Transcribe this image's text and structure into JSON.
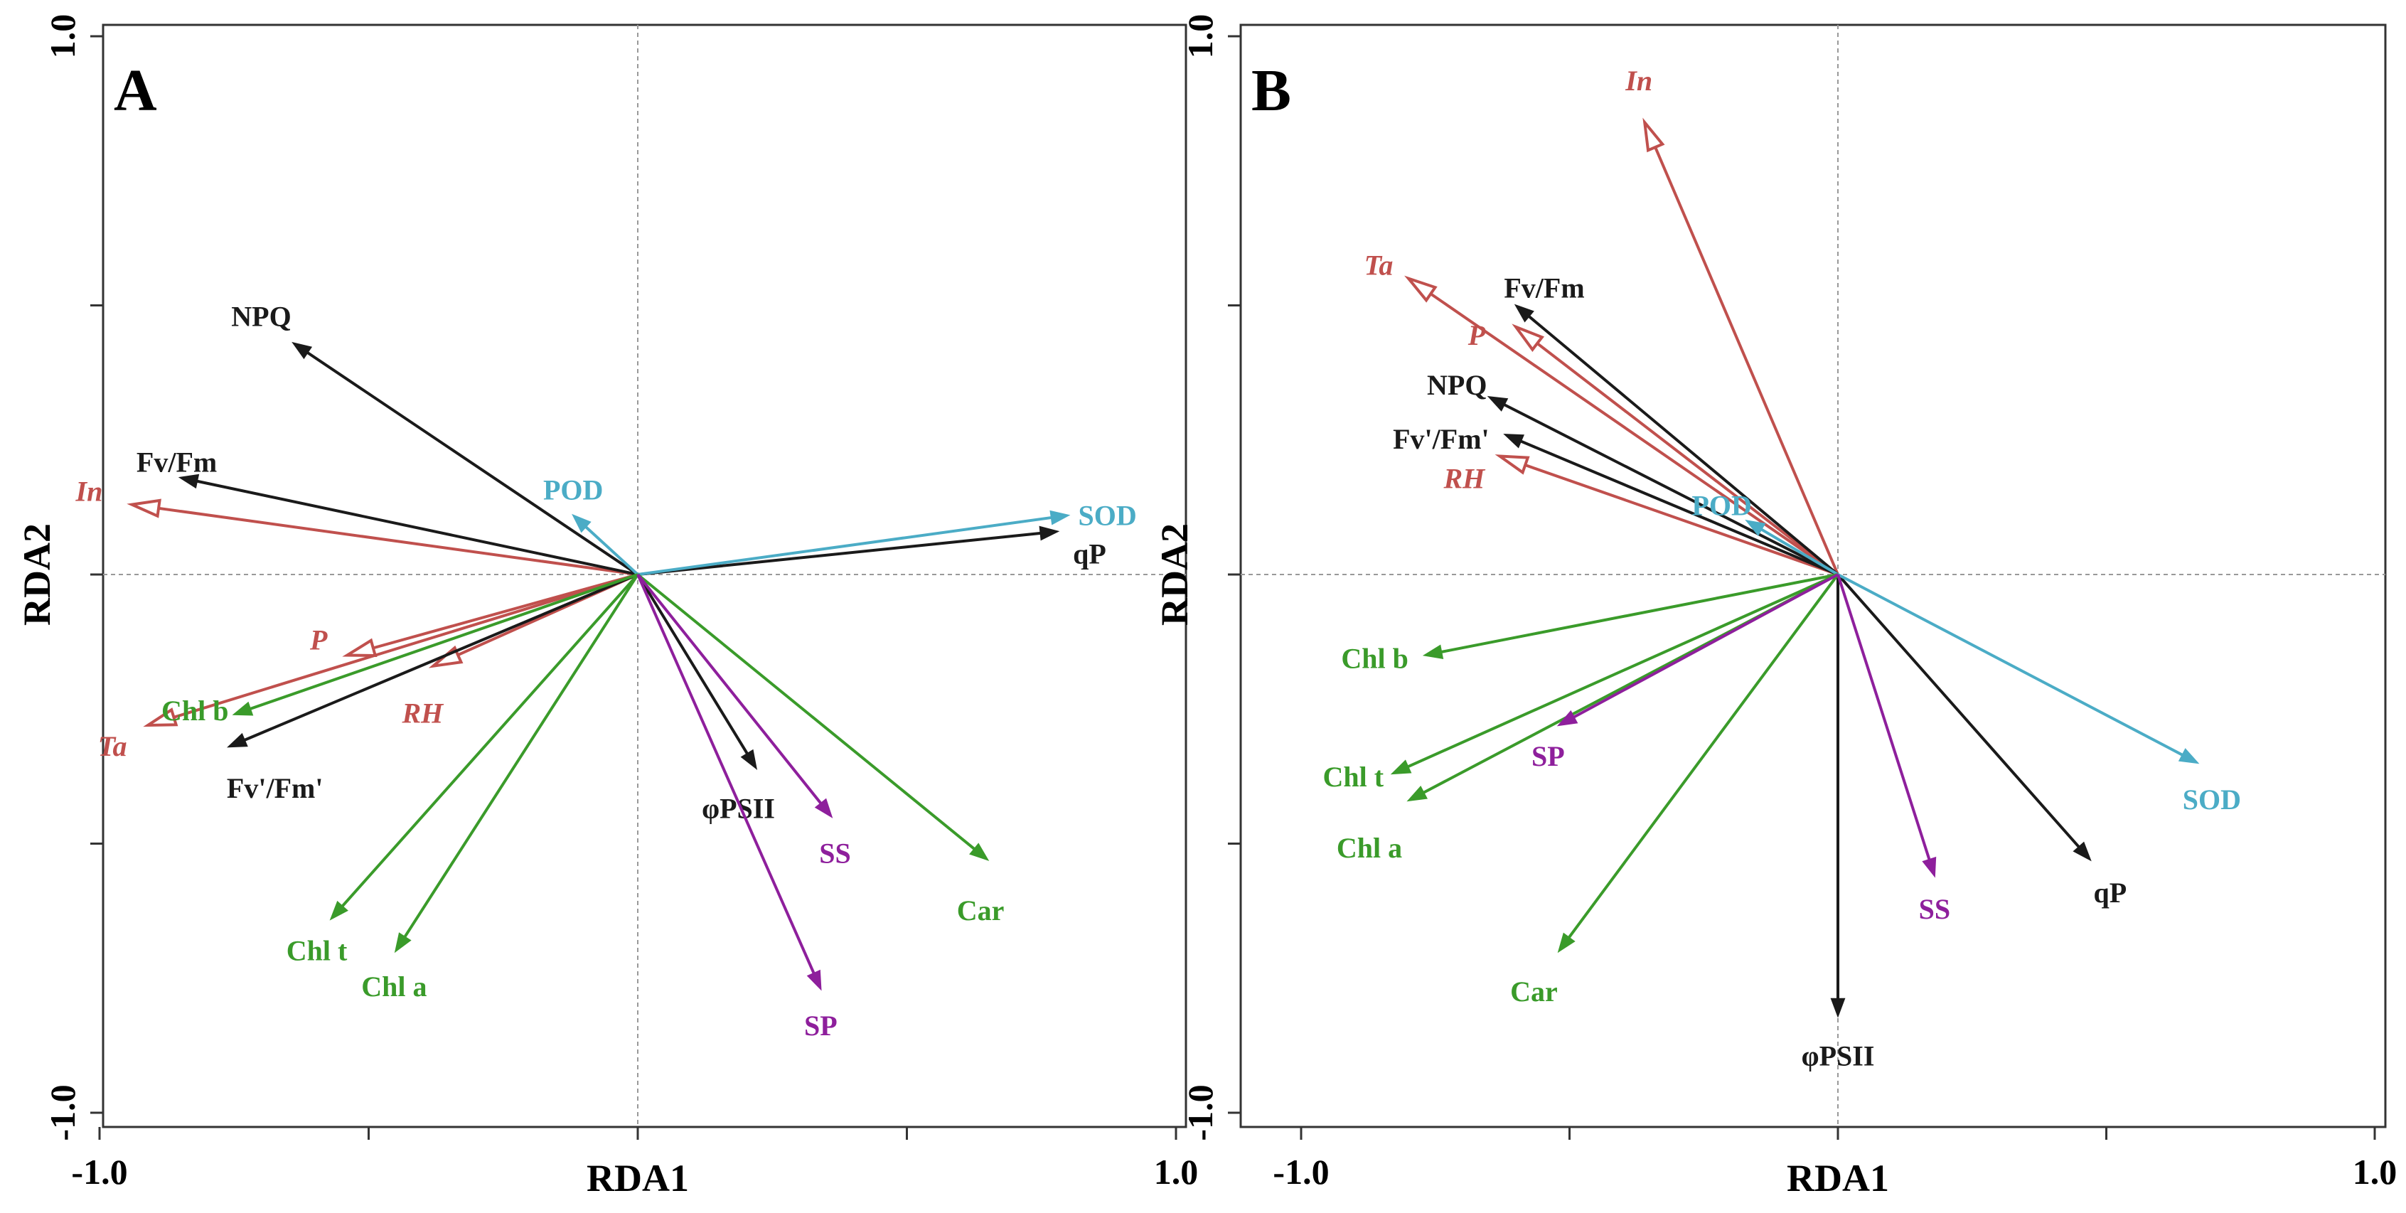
{
  "chart_data": [
    {
      "type": "rda-biplot",
      "panel_label": "A",
      "xlabel": "RDA1",
      "ylabel": "RDA2",
      "xlim": [
        -1.0,
        1.0
      ],
      "ylim": [
        -1.0,
        1.0
      ],
      "xtick_labels": [
        "-1.0",
        "1.0"
      ],
      "ytick_labels": [
        "1.0",
        "-1.0"
      ],
      "zero_line_style": "dotted",
      "colors": {
        "environment": "#c0504d",
        "photosynthesis": "#1a1a1a",
        "enzymes": "#4bacc6",
        "pigments": "#3a9b2a",
        "osmolytes": "#8e1f9c"
      },
      "vectors": [
        {
          "label": "In",
          "group": "environment",
          "italic": true,
          "head": "open",
          "x": -0.94,
          "y": 0.13
        },
        {
          "label": "Ta",
          "group": "environment",
          "italic": true,
          "head": "open",
          "x": -0.91,
          "y": -0.28
        },
        {
          "label": "P",
          "group": "environment",
          "italic": true,
          "head": "open",
          "x": -0.54,
          "y": -0.15
        },
        {
          "label": "RH",
          "group": "environment",
          "italic": true,
          "head": "open",
          "x": -0.38,
          "y": -0.17
        },
        {
          "label": "NPQ",
          "group": "photosynthesis",
          "italic": false,
          "head": "solid",
          "x": -0.64,
          "y": 0.43
        },
        {
          "label": "Fv/Fm",
          "group": "photosynthesis",
          "italic": false,
          "head": "solid",
          "x": -0.85,
          "y": 0.18
        },
        {
          "label": "Fv'/Fm'",
          "group": "photosynthesis",
          "italic": false,
          "head": "solid",
          "x": -0.76,
          "y": -0.32
        },
        {
          "label": "qP",
          "group": "photosynthesis",
          "italic": false,
          "head": "solid",
          "x": 0.78,
          "y": 0.08
        },
        {
          "label": "φPSII",
          "group": "photosynthesis",
          "italic": false,
          "head": "solid",
          "x": 0.22,
          "y": -0.36
        },
        {
          "label": "POD",
          "group": "enzymes",
          "italic": false,
          "head": "solid",
          "x": -0.12,
          "y": 0.11
        },
        {
          "label": "SOD",
          "group": "enzymes",
          "italic": false,
          "head": "solid",
          "x": 0.8,
          "y": 0.11
        },
        {
          "label": "Chl b",
          "group": "pigments",
          "italic": false,
          "head": "solid",
          "x": -0.75,
          "y": -0.26
        },
        {
          "label": "Chl t",
          "group": "pigments",
          "italic": false,
          "head": "solid",
          "x": -0.57,
          "y": -0.64
        },
        {
          "label": "Chl a",
          "group": "pigments",
          "italic": false,
          "head": "solid",
          "x": -0.45,
          "y": -0.7
        },
        {
          "label": "Car",
          "group": "pigments",
          "italic": false,
          "head": "solid",
          "x": 0.65,
          "y": -0.53
        },
        {
          "label": "SS",
          "group": "osmolytes",
          "italic": false,
          "head": "solid",
          "x": 0.36,
          "y": -0.45
        },
        {
          "label": "SP",
          "group": "osmolytes",
          "italic": false,
          "head": "solid",
          "x": 0.34,
          "y": -0.77
        }
      ]
    },
    {
      "type": "rda-biplot",
      "panel_label": "B",
      "xlabel": "RDA1",
      "ylabel": "RDA2",
      "xlim": [
        -1.0,
        1.0
      ],
      "ylim": [
        -1.0,
        1.0
      ],
      "xtick_labels": [
        "-1.0",
        "1.0"
      ],
      "ytick_labels": [
        "1.0",
        "-1.0"
      ],
      "zero_line_style": "dashed",
      "colors": {
        "environment": "#c0504d",
        "photosynthesis": "#1a1a1a",
        "enzymes": "#4bacc6",
        "pigments": "#3a9b2a",
        "osmolytes": "#8e1f9c"
      },
      "vectors": [
        {
          "label": "In",
          "group": "environment",
          "italic": true,
          "head": "open",
          "x": -0.36,
          "y": 0.84
        },
        {
          "label": "Ta",
          "group": "environment",
          "italic": true,
          "head": "open",
          "x": -0.8,
          "y": 0.55
        },
        {
          "label": "P",
          "group": "environment",
          "italic": true,
          "head": "open",
          "x": -0.6,
          "y": 0.46
        },
        {
          "label": "RH",
          "group": "environment",
          "italic": true,
          "head": "open",
          "x": -0.63,
          "y": 0.22
        },
        {
          "label": "Fv/Fm",
          "group": "photosynthesis",
          "italic": false,
          "head": "solid",
          "x": -0.6,
          "y": 0.5
        },
        {
          "label": "NPQ",
          "group": "photosynthesis",
          "italic": false,
          "head": "solid",
          "x": -0.65,
          "y": 0.33
        },
        {
          "label": "Fv'/Fm'",
          "group": "photosynthesis",
          "italic": false,
          "head": "solid",
          "x": -0.62,
          "y": 0.26
        },
        {
          "label": "qP",
          "group": "photosynthesis",
          "italic": false,
          "head": "solid",
          "x": 0.47,
          "y": -0.53
        },
        {
          "label": "φPSII",
          "group": "photosynthesis",
          "italic": false,
          "head": "solid",
          "x": 0.0,
          "y": -0.82
        },
        {
          "label": "POD",
          "group": "enzymes",
          "italic": false,
          "head": "solid",
          "x": -0.17,
          "y": 0.1
        },
        {
          "label": "SOD",
          "group": "enzymes",
          "italic": false,
          "head": "solid",
          "x": 0.67,
          "y": -0.35
        },
        {
          "label": "Chl b",
          "group": "pigments",
          "italic": false,
          "head": "solid",
          "x": -0.77,
          "y": -0.15
        },
        {
          "label": "Chl t",
          "group": "pigments",
          "italic": false,
          "head": "solid",
          "x": -0.83,
          "y": -0.37
        },
        {
          "label": "Chl a",
          "group": "pigments",
          "italic": false,
          "head": "solid",
          "x": -0.8,
          "y": -0.42
        },
        {
          "label": "Car",
          "group": "pigments",
          "italic": false,
          "head": "solid",
          "x": -0.52,
          "y": -0.7
        },
        {
          "label": "SP",
          "group": "osmolytes",
          "italic": false,
          "head": "solid",
          "x": -0.52,
          "y": -0.28
        },
        {
          "label": "SS",
          "group": "osmolytes",
          "italic": false,
          "head": "solid",
          "x": 0.18,
          "y": -0.56
        }
      ]
    }
  ]
}
